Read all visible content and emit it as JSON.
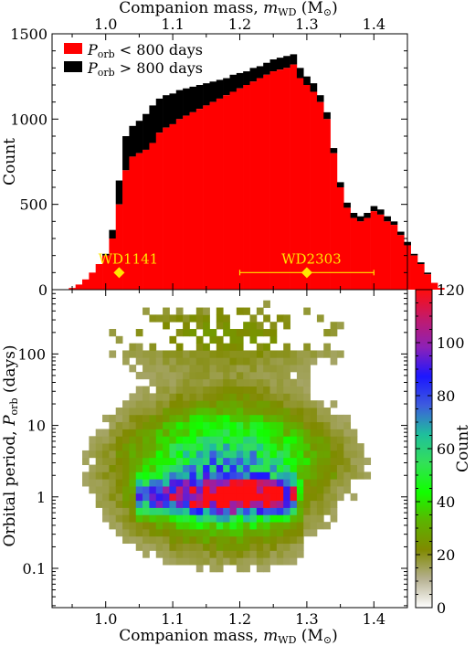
{
  "chart_data": [
    {
      "type": "bar",
      "chart": "histogram",
      "xlabel": "Companion mass, m_WD (M⊙)",
      "ylabel": "Count",
      "xlim": [
        0.92,
        1.45
      ],
      "ylim": [
        0,
        1500
      ],
      "xticks": [
        "1.0",
        "1.1",
        "1.2",
        "1.3",
        "1.4"
      ],
      "yticks": [
        "0",
        "500",
        "1000",
        "1500"
      ],
      "legend_position": "top-left",
      "bin_start": 0.925,
      "bin_width": 0.01,
      "series": [
        {
          "name": "P_orb < 800 days",
          "color": "#ff0000",
          "values": [
            0,
            0,
            10,
            30,
            60,
            100,
            150,
            200,
            300,
            500,
            700,
            780,
            800,
            820,
            860,
            920,
            950,
            970,
            1000,
            1020,
            1040,
            1060,
            1080,
            1100,
            1120,
            1140,
            1160,
            1180,
            1200,
            1220,
            1240,
            1260,
            1280,
            1290,
            1300,
            1320,
            1240,
            1200,
            1160,
            1100,
            1000,
            800,
            600,
            480,
            420,
            400,
            420,
            460,
            440,
            400,
            380,
            320,
            260,
            200,
            150,
            90,
            40,
            10,
            0
          ]
        },
        {
          "name": "P_orb > 800 days",
          "color": "#000000",
          "values": [
            0,
            0,
            0,
            0,
            0,
            0,
            0,
            10,
            50,
            140,
            200,
            180,
            190,
            210,
            220,
            200,
            190,
            180,
            170,
            160,
            150,
            140,
            130,
            120,
            110,
            100,
            100,
            90,
            80,
            80,
            70,
            70,
            70,
            70,
            70,
            60,
            60,
            50,
            50,
            40,
            40,
            30,
            30,
            30,
            30,
            30,
            30,
            30,
            30,
            30,
            20,
            20,
            20,
            10,
            10,
            10,
            0,
            0,
            0
          ]
        }
      ],
      "annotations": [
        {
          "label": "WD1141",
          "x": 1.02,
          "y": 100,
          "xerr": 0.005,
          "marker": "diamond",
          "color": "#ffe600"
        },
        {
          "label": "WD2303",
          "x": 1.3,
          "y": 100,
          "xerr": 0.1,
          "marker": "diamond",
          "color": "#ffe600"
        }
      ]
    },
    {
      "type": "heatmap",
      "xlabel": "Companion mass, m_WD (M⊙)",
      "ylabel": "Orbital period, P_orb (days)",
      "xlim": [
        0.92,
        1.45
      ],
      "ylim_log10": [
        -1.55,
        2.9
      ],
      "xticks": [
        "1.0",
        "1.1",
        "1.2",
        "1.3",
        "1.4"
      ],
      "yticks": [
        "0.1",
        "1",
        "10",
        "100"
      ],
      "log_y": true,
      "colorbar": {
        "label": "Count",
        "range": [
          0,
          120
        ],
        "ticks": [
          "0",
          "20",
          "40",
          "60",
          "80",
          "100",
          "120"
        ],
        "colors": [
          "#ffffff",
          "#b5b090",
          "#808a00",
          "#5cb400",
          "#11ff00",
          "#33e058",
          "#1fbf9c",
          "#3d5cde",
          "#1c17ff",
          "#8c21b8",
          "#c21a6b",
          "#ff0d0d"
        ]
      },
      "peak": {
        "x": 1.2,
        "period_days": 1,
        "count": 120
      },
      "density_notes": "dense ridge near P_orb ~ 1 day for m_WD 1.05-1.28; sparse above 100 days"
    }
  ]
}
